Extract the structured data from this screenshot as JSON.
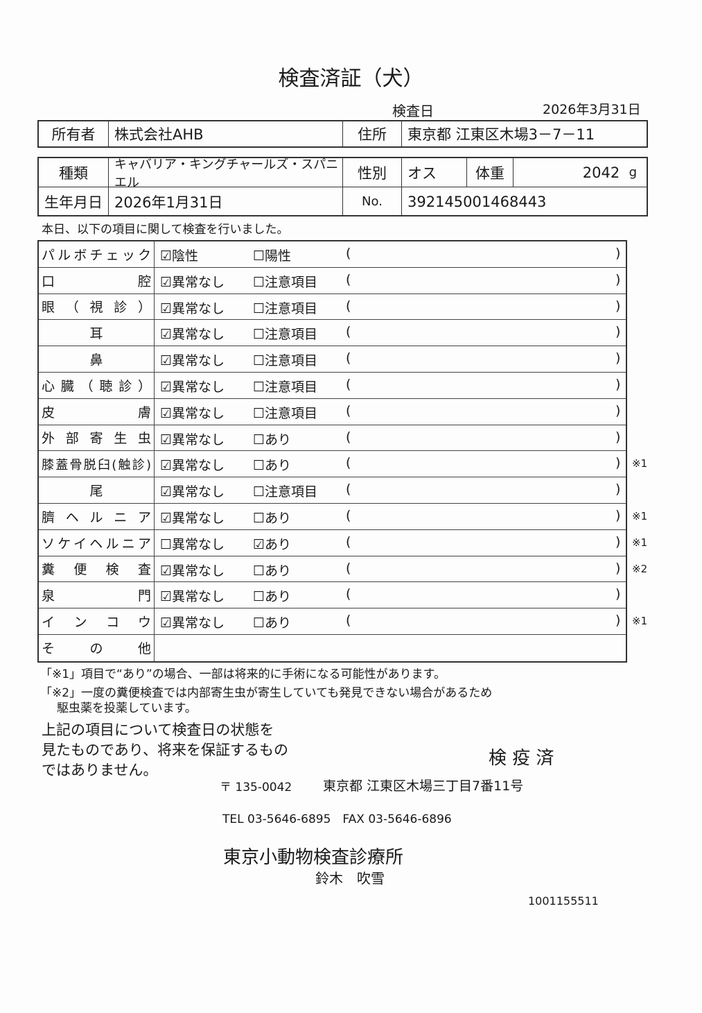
{
  "title": "検査済証（犬）",
  "exam_date_label": "検査日",
  "exam_date": "2026年3月31日",
  "owner": {
    "label": "所有者",
    "value": "株式会社AHB",
    "address_label": "住所",
    "address": "東京都 江東区木場3－7－11"
  },
  "pet": {
    "breed_label": "種類",
    "breed": "キャバリア・キングチャールズ・スパニエル",
    "sex_label": "性別",
    "sex": "オス",
    "weight_label": "体重",
    "weight": "2042",
    "weight_unit": "g",
    "birth_label": "生年月日",
    "birth": "2026年1月31日",
    "no_label": "No.",
    "no": "392145001468443"
  },
  "intro": "本日、以下の項目に関して検査を行いました。",
  "checks": [
    {
      "label": "パルボチェック",
      "o1": "陰性",
      "o2": "陽性",
      "checked": 1,
      "note": ""
    },
    {
      "label": "口腔",
      "o1": "異常なし",
      "o2": "注意項目",
      "checked": 1,
      "note": ""
    },
    {
      "label": "眼（視診）",
      "o1": "異常なし",
      "o2": "注意項目",
      "checked": 1,
      "note": ""
    },
    {
      "label": "耳",
      "o1": "異常なし",
      "o2": "注意項目",
      "checked": 1,
      "note": ""
    },
    {
      "label": "鼻",
      "o1": "異常なし",
      "o2": "注意項目",
      "checked": 1,
      "note": ""
    },
    {
      "label": "心臓（聴診）",
      "o1": "異常なし",
      "o2": "注意項目",
      "checked": 1,
      "note": ""
    },
    {
      "label": "皮膚",
      "o1": "異常なし",
      "o2": "注意項目",
      "checked": 1,
      "note": ""
    },
    {
      "label": "外部寄生虫",
      "o1": "異常なし",
      "o2": "あり",
      "checked": 1,
      "note": ""
    },
    {
      "label": "膝蓋骨脱臼(触診)",
      "o1": "異常なし",
      "o2": "あり",
      "checked": 1,
      "note": "※1"
    },
    {
      "label": "尾",
      "o1": "異常なし",
      "o2": "注意項目",
      "checked": 1,
      "note": ""
    },
    {
      "label": "臍ヘルニア",
      "o1": "異常なし",
      "o2": "あり",
      "checked": 1,
      "note": "※1"
    },
    {
      "label": "ソケイヘルニア",
      "o1": "異常なし",
      "o2": "あり",
      "checked": 2,
      "note": "※1"
    },
    {
      "label": "糞便検査",
      "o1": "異常なし",
      "o2": "あり",
      "checked": 1,
      "note": "※2"
    },
    {
      "label": "泉門",
      "o1": "異常なし",
      "o2": "あり",
      "checked": 1,
      "note": ""
    },
    {
      "label": "インコウ",
      "o1": "異常なし",
      "o2": "あり",
      "checked": 1,
      "note": "※1"
    },
    {
      "label": "その他",
      "o1": "",
      "o2": "",
      "checked": 0,
      "note": ""
    }
  ],
  "footnote1": "「※1」項目で“あり”の場合、一部は将来的に手術になる可能性があります。",
  "footnote2a": "「※2」一度の糞便検査では内部寄生虫が寄生していても発見できない場合があるため",
  "footnote2b": "駆虫薬を投薬しています。",
  "disclaimer": [
    "上記の項目について検査日の状態を",
    "見たものであり、将来を保証するもの",
    "ではありません。"
  ],
  "stamp": "検 疫 済",
  "postal": "〒 135-0042",
  "clinic_address": "東京都 江東区木場三丁目7番11号",
  "tel": "TEL 03-5646-6895　FAX 03-5646-6896",
  "clinic_name": "東京小動物検査診療所",
  "vet_name": "鈴木　吹雪",
  "doc_number": "1001155511"
}
